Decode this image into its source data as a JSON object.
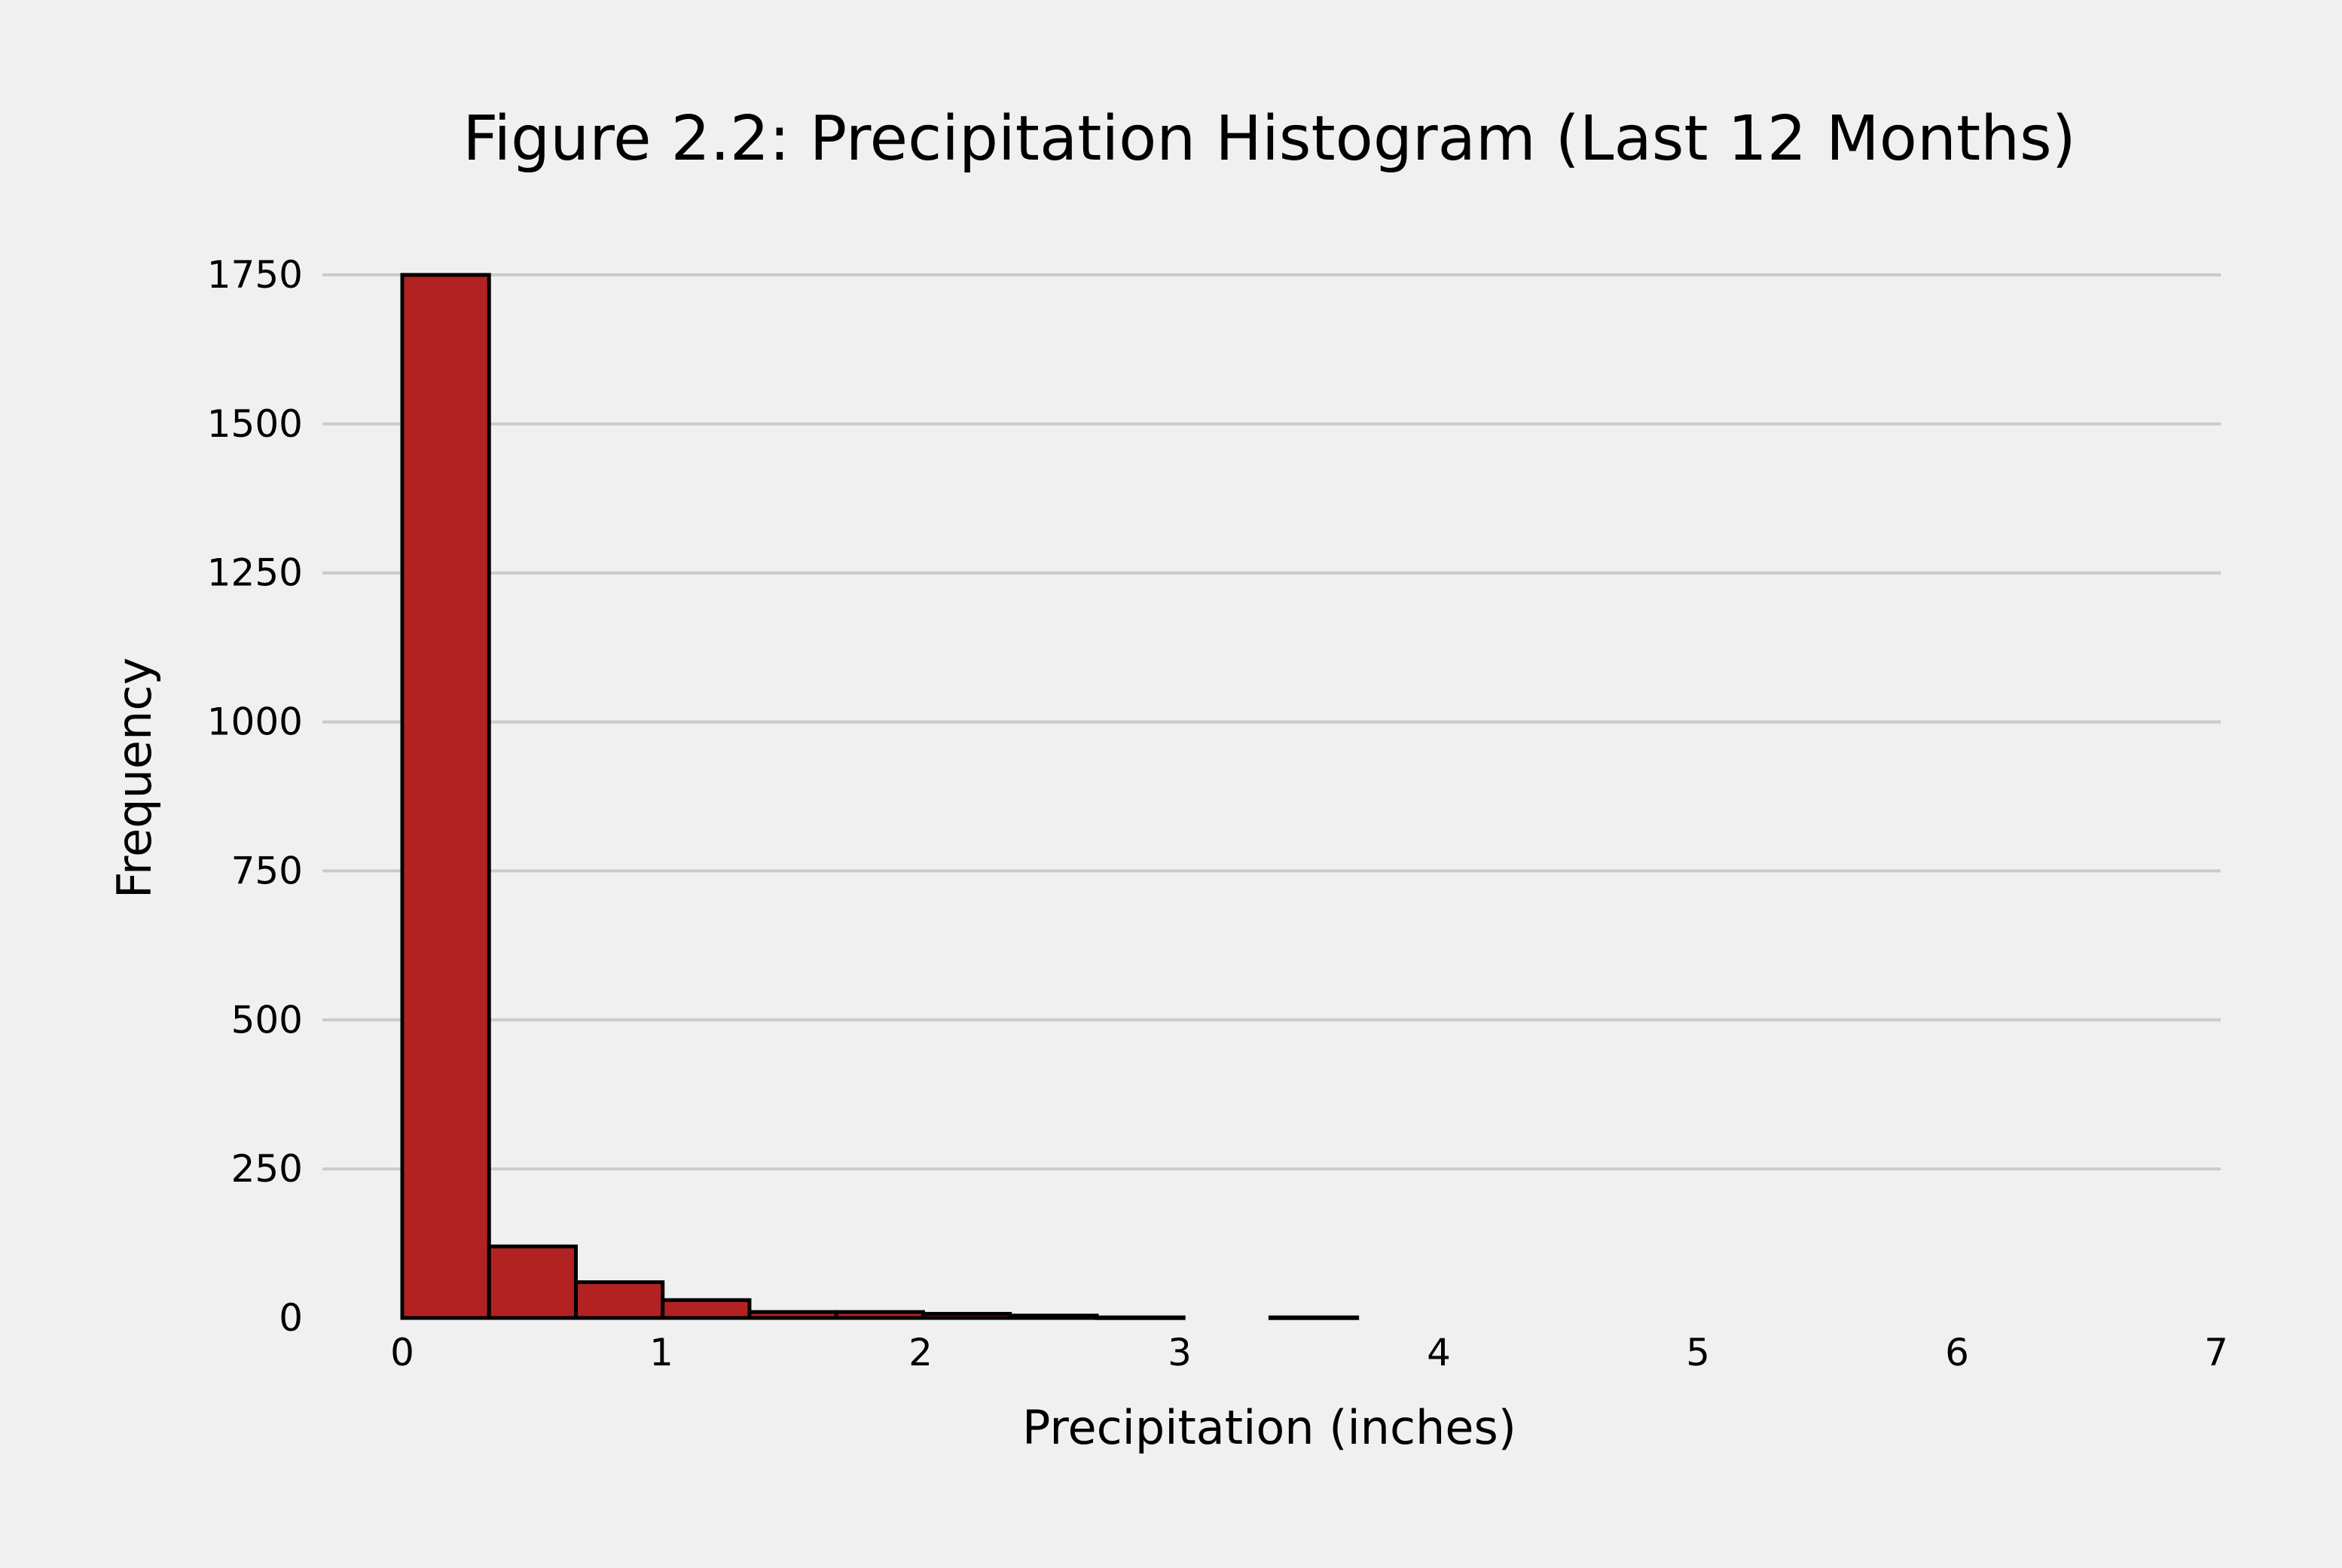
{
  "chart_data": {
    "type": "bar",
    "title": "Figure 2.2: Precipitation Histogram (Last 12 Months)",
    "xlabel": "Precipitation (inches)",
    "ylabel": "Frequency",
    "xlim": [
      0,
      7
    ],
    "ylim": [
      0,
      1750
    ],
    "xticks": [
      "0",
      "1",
      "2",
      "3",
      "4",
      "5",
      "6",
      "7"
    ],
    "yticks": [
      "0",
      "250",
      "500",
      "750",
      "1000",
      "1250",
      "1500",
      "1750"
    ],
    "grid": "horizontal",
    "bar_color": "#b22222",
    "edge_color": "#000000",
    "bins": [
      {
        "x0": 0.0,
        "x1": 0.335,
        "count": 1750
      },
      {
        "x0": 0.335,
        "x1": 0.67,
        "count": 120
      },
      {
        "x0": 0.67,
        "x1": 1.005,
        "count": 60
      },
      {
        "x0": 1.005,
        "x1": 1.34,
        "count": 30
      },
      {
        "x0": 1.34,
        "x1": 1.675,
        "count": 10
      },
      {
        "x0": 1.675,
        "x1": 2.01,
        "count": 10
      },
      {
        "x0": 2.01,
        "x1": 2.345,
        "count": 7
      },
      {
        "x0": 2.345,
        "x1": 2.68,
        "count": 4
      },
      {
        "x0": 2.68,
        "x1": 3.015,
        "count": 1
      },
      {
        "x0": 3.015,
        "x1": 3.35,
        "count": 0
      },
      {
        "x0": 3.35,
        "x1": 3.685,
        "count": 1
      }
    ]
  }
}
